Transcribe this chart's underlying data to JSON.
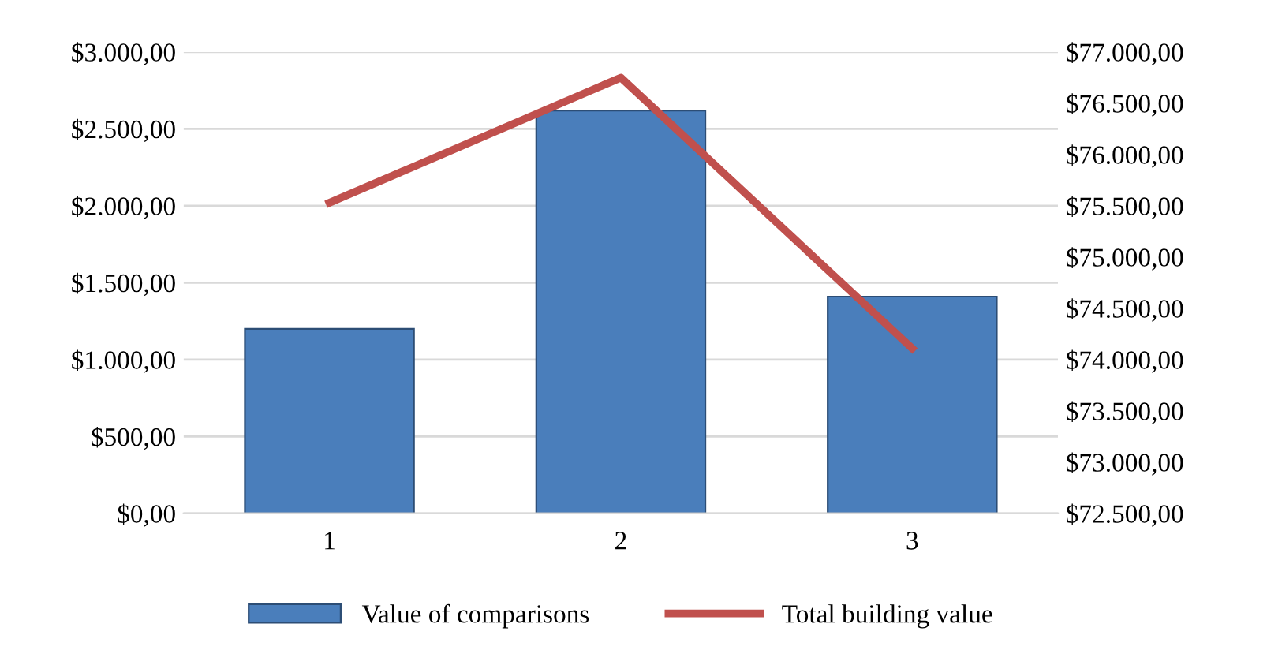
{
  "chart_data": {
    "type": "bar",
    "categories": [
      "1",
      "2",
      "3"
    ],
    "series": [
      {
        "name": "Value of comparisons",
        "color": "#4a7ebb",
        "values": [
          1200,
          2620,
          1410
        ]
      },
      {
        "name": "Total building value",
        "type": "line",
        "axis": "y2",
        "color": "#c0504d",
        "values": [
          75530,
          76750,
          74110
        ]
      }
    ],
    "ylim": [
      0,
      3000
    ],
    "yticks": [
      {
        "value": 0,
        "label": "$0,00"
      },
      {
        "value": 500,
        "label": "$500,00"
      },
      {
        "value": 1000,
        "label": "$1.000,00"
      },
      {
        "value": 1500,
        "label": "$1.500,00"
      },
      {
        "value": 2000,
        "label": "$2.000,00"
      },
      {
        "value": 2500,
        "label": "$2.500,00"
      },
      {
        "value": 3000,
        "label": "$3.000,00"
      }
    ],
    "y2lim": [
      72500,
      77000
    ],
    "y2ticks": [
      {
        "value": 72500,
        "label": "$72.500,00"
      },
      {
        "value": 73000,
        "label": "$73.000,00"
      },
      {
        "value": 73500,
        "label": "$73.500,00"
      },
      {
        "value": 74000,
        "label": "$74.000,00"
      },
      {
        "value": 74500,
        "label": "$74.500,00"
      },
      {
        "value": 75000,
        "label": "$75.000,00"
      },
      {
        "value": 75500,
        "label": "$75.500,00"
      },
      {
        "value": 76000,
        "label": "$76.000,00"
      },
      {
        "value": 76500,
        "label": "$76.500,00"
      },
      {
        "value": 77000,
        "label": "$77.000,00"
      }
    ],
    "grid": "y",
    "legend": "bottom"
  }
}
